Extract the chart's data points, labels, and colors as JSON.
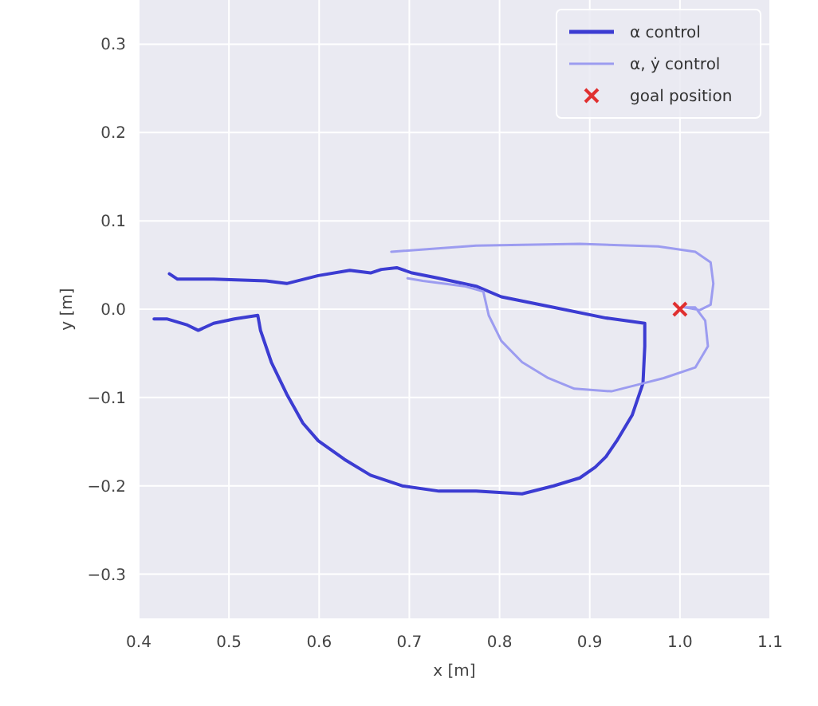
{
  "chart_data": {
    "type": "line",
    "xlabel": "x [m]",
    "ylabel": "y [m]",
    "xlim": [
      0.4,
      1.1
    ],
    "ylim": [
      -0.35,
      0.35
    ],
    "xticks": [
      {
        "value": 0.4,
        "label": "0.4"
      },
      {
        "value": 0.5,
        "label": "0.5"
      },
      {
        "value": 0.6,
        "label": "0.6"
      },
      {
        "value": 0.7,
        "label": "0.7"
      },
      {
        "value": 0.8,
        "label": "0.8"
      },
      {
        "value": 0.9,
        "label": "0.9"
      },
      {
        "value": 1.0,
        "label": "1.0"
      },
      {
        "value": 1.1,
        "label": "1.1"
      }
    ],
    "yticks": [
      {
        "value": -0.3,
        "label": "−0.3"
      },
      {
        "value": -0.2,
        "label": "−0.2"
      },
      {
        "value": -0.1,
        "label": "−0.1"
      },
      {
        "value": 0,
        "label": "0.0"
      },
      {
        "value": 0.1,
        "label": "0.1"
      },
      {
        "value": 0.2,
        "label": "0.2"
      },
      {
        "value": 0.3,
        "label": "0.3"
      }
    ],
    "grid": true,
    "legend": "top right",
    "series": [
      {
        "name": "α control",
        "color": "#3c3cd2",
        "x": [
          0.434,
          0.443,
          0.483,
          0.541,
          0.564,
          0.599,
          0.634,
          0.657,
          0.669,
          0.686,
          0.703,
          0.733,
          0.774,
          0.802,
          0.86,
          0.918,
          0.947,
          0.961,
          0.961,
          0.959,
          0.947,
          0.93,
          0.918,
          0.906,
          0.889,
          0.86,
          0.825,
          0.774,
          0.733,
          0.692,
          0.657,
          0.628,
          0.599,
          0.582,
          0.564,
          0.547,
          0.535,
          0.532,
          0.506,
          0.483,
          0.466,
          0.454,
          0.431,
          0.417
        ],
        "values": [
          0.04,
          0.034,
          0.034,
          0.032,
          0.029,
          0.038,
          0.044,
          0.041,
          0.045,
          0.047,
          0.041,
          0.035,
          0.026,
          0.014,
          0.002,
          -0.01,
          -0.014,
          -0.016,
          -0.042,
          -0.084,
          -0.12,
          -0.149,
          -0.167,
          -0.179,
          -0.191,
          -0.2,
          -0.209,
          -0.206,
          -0.206,
          -0.2,
          -0.188,
          -0.17,
          -0.149,
          -0.129,
          -0.096,
          -0.06,
          -0.024,
          -0.007,
          -0.011,
          -0.016,
          -0.024,
          -0.018,
          -0.011,
          -0.011
        ]
      },
      {
        "name": "α, ẏ control",
        "color": "#9c9cf0",
        "x": [
          0.68,
          0.774,
          0.889,
          0.976,
          1.017,
          1.034,
          1.037,
          1.034,
          1.022,
          1.005,
          1.017,
          1.028,
          1.031,
          1.017,
          0.982,
          0.959,
          0.924,
          0.883,
          0.854,
          0.825,
          0.802,
          0.788,
          0.782,
          0.761,
          0.715,
          0.698
        ],
        "values": [
          0.065,
          0.072,
          0.074,
          0.071,
          0.065,
          0.053,
          0.029,
          0.005,
          -0.001,
          0.002,
          0.002,
          -0.013,
          -0.042,
          -0.066,
          -0.078,
          -0.084,
          -0.093,
          -0.09,
          -0.078,
          -0.06,
          -0.036,
          -0.007,
          0.02,
          0.026,
          0.032,
          0.035
        ]
      },
      {
        "name": "goal position",
        "type": "scatter",
        "marker": "cross",
        "color": "#e03030",
        "x": [
          1.0
        ],
        "values": [
          0.0
        ]
      }
    ]
  }
}
